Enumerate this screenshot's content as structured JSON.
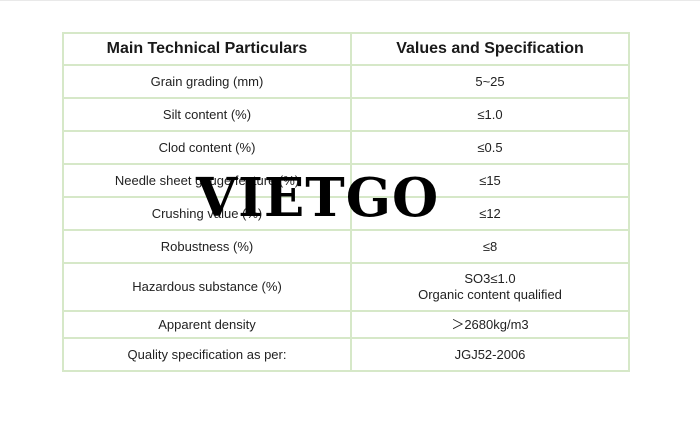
{
  "table": {
    "headers": [
      "Main Technical Particulars",
      "Values and Specification"
    ],
    "rows": [
      {
        "param": "Grain grading (mm)",
        "value": [
          "5~25"
        ]
      },
      {
        "param": "Silt content (%)",
        "value": [
          "≤1.0"
        ]
      },
      {
        "param": "Clod content (%)",
        "value": [
          "≤0.5"
        ]
      },
      {
        "param": "Needle sheet gauge feature (%)",
        "value": [
          "≤15"
        ]
      },
      {
        "param": "Crushing value (%)",
        "value": [
          "≤12"
        ]
      },
      {
        "param": "Robustness (%)",
        "value": [
          "≤8"
        ]
      },
      {
        "param": "Hazardous substance (%)",
        "value": [
          "SO3≤1.0",
          "Organic content qualified"
        ]
      },
      {
        "param": "Apparent density",
        "value": [
          "＞2680kg/m3"
        ]
      },
      {
        "param": "Quality specification as per:",
        "value": [
          "JGJ52-2006"
        ]
      }
    ]
  },
  "watermark": "VIETGO",
  "colors": {
    "border": "#d6e8c8",
    "text": "#222222",
    "watermark": "#000000"
  }
}
